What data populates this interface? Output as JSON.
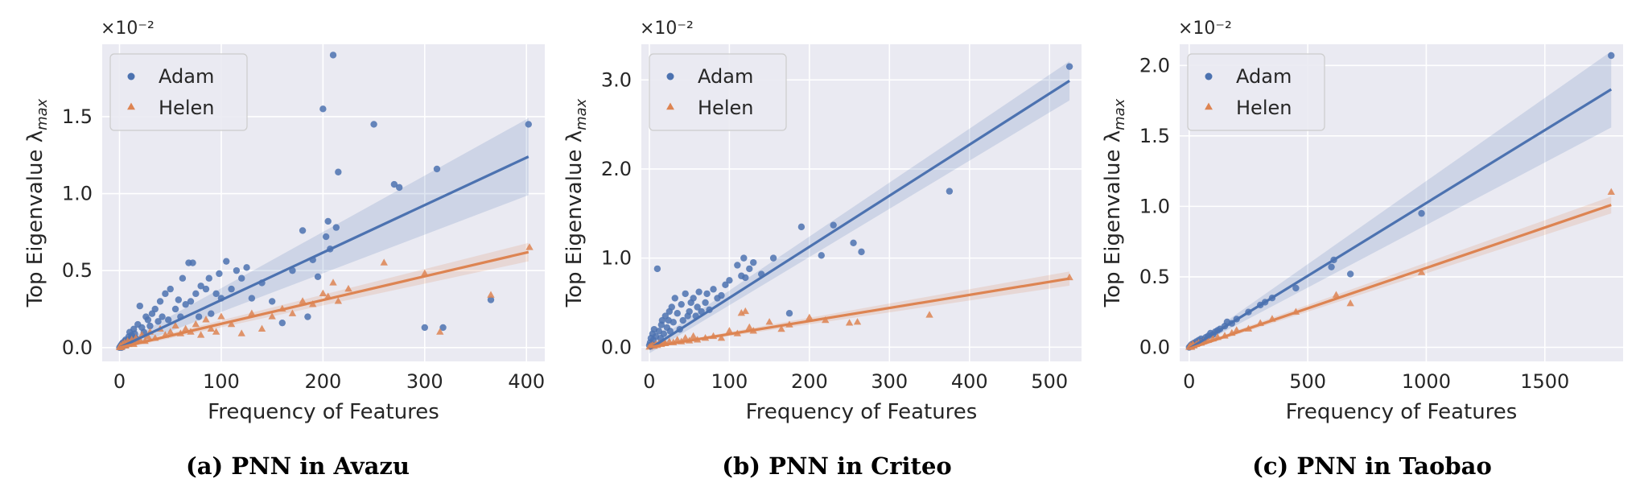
{
  "axis_exponent_label": "×10⁻²",
  "legend_items": {
    "adam": "Adam",
    "helen": "Helen"
  },
  "colors": {
    "adam": "#4c72b0",
    "helen": "#dd8452",
    "grid": "#ffffff",
    "plot_bg": "#eaeaf2",
    "text": "#262626"
  },
  "chart_data": [
    {
      "type": "scatter",
      "caption": "(a) PNN in Avazu",
      "xlabel": "Frequency of Features",
      "ylabel": "Top Eigenvalue λ",
      "ylabel_subscript": "max",
      "xlim": [
        -17,
        418
      ],
      "ylim": [
        -0.09,
        1.97
      ],
      "xticks": [
        0,
        100,
        200,
        300,
        400
      ],
      "xtick_labels": [
        "0",
        "100",
        "200",
        "300",
        "400"
      ],
      "yticks": [
        0,
        0.5,
        1.0,
        1.5
      ],
      "ytick_labels": [
        "0.0",
        "0.5",
        "1.0",
        "1.5"
      ],
      "legend": "top-left",
      "grid": true,
      "series": [
        {
          "name": "Adam",
          "marker": "circle",
          "x": [
            0,
            1,
            2,
            2,
            3,
            4,
            5,
            5,
            6,
            7,
            8,
            9,
            10,
            10,
            11,
            12,
            13,
            14,
            15,
            16,
            18,
            20,
            22,
            24,
            26,
            28,
            30,
            32,
            35,
            38,
            40,
            42,
            45,
            48,
            50,
            55,
            58,
            60,
            62,
            65,
            68,
            70,
            72,
            75,
            78,
            80,
            85,
            88,
            90,
            95,
            98,
            100,
            105,
            110,
            115,
            120,
            125,
            130,
            140,
            150,
            160,
            170,
            180,
            185,
            190,
            195,
            200,
            203,
            205,
            207,
            210,
            213,
            215,
            250,
            270,
            275,
            300,
            312,
            318,
            365,
            402
          ],
          "y": [
            0.0,
            0.01,
            0.02,
            0.0,
            0.03,
            0.01,
            0.04,
            0.02,
            0.05,
            0.03,
            0.02,
            0.07,
            0.05,
            0.1,
            0.06,
            0.08,
            0.04,
            0.12,
            0.09,
            0.06,
            0.15,
            0.27,
            0.13,
            0.1,
            0.2,
            0.18,
            0.14,
            0.22,
            0.25,
            0.17,
            0.3,
            0.2,
            0.35,
            0.18,
            0.38,
            0.25,
            0.31,
            0.2,
            0.45,
            0.28,
            0.55,
            0.3,
            0.55,
            0.35,
            0.2,
            0.4,
            0.38,
            0.45,
            0.22,
            0.35,
            0.48,
            0.32,
            0.56,
            0.38,
            0.5,
            0.45,
            0.52,
            0.32,
            0.42,
            0.3,
            0.16,
            0.5,
            0.76,
            0.2,
            0.57,
            0.46,
            1.55,
            0.72,
            0.82,
            0.64,
            1.9,
            0.78,
            1.14,
            1.45,
            1.06,
            1.04,
            0.13,
            1.16,
            0.13,
            0.31,
            1.45
          ]
        },
        {
          "name": "Helen",
          "marker": "triangle",
          "x": [
            0,
            1,
            2,
            3,
            4,
            5,
            6,
            7,
            8,
            9,
            10,
            12,
            14,
            16,
            18,
            20,
            22,
            25,
            28,
            30,
            35,
            40,
            45,
            50,
            55,
            60,
            65,
            70,
            75,
            80,
            85,
            90,
            95,
            100,
            110,
            120,
            130,
            140,
            150,
            160,
            170,
            180,
            190,
            200,
            205,
            210,
            215,
            225,
            260,
            300,
            315,
            365,
            403
          ],
          "y": [
            0.0,
            0.01,
            0.0,
            0.02,
            0.01,
            0.03,
            0.01,
            0.02,
            0.04,
            0.02,
            0.03,
            0.05,
            0.02,
            0.06,
            0.04,
            0.05,
            0.08,
            0.04,
            0.07,
            0.1,
            0.06,
            0.12,
            0.08,
            0.1,
            0.14,
            0.09,
            0.12,
            0.1,
            0.15,
            0.08,
            0.18,
            0.12,
            0.1,
            0.2,
            0.15,
            0.09,
            0.22,
            0.12,
            0.2,
            0.25,
            0.22,
            0.3,
            0.28,
            0.35,
            0.33,
            0.42,
            0.3,
            0.38,
            0.55,
            0.48,
            0.1,
            0.34,
            0.65
          ]
        }
      ],
      "fits": [
        {
          "name": "Adam",
          "x": [
            0,
            402
          ],
          "y": [
            0.0,
            1.24
          ],
          "ci_halfwidth": [
            0.02,
            0.25
          ]
        },
        {
          "name": "Helen",
          "x": [
            0,
            402
          ],
          "y": [
            0.0,
            0.62
          ],
          "ci_halfwidth": [
            0.01,
            0.06
          ]
        }
      ]
    },
    {
      "type": "scatter",
      "caption": "(b) PNN in Criteo",
      "xlabel": "Frequency of Features",
      "ylabel": "Top Eigenvalue λ",
      "ylabel_subscript": "max",
      "xlim": [
        -10,
        540
      ],
      "ylim": [
        -0.16,
        3.4
      ],
      "xticks": [
        0,
        100,
        200,
        300,
        400,
        500
      ],
      "xtick_labels": [
        "0",
        "100",
        "200",
        "300",
        "400",
        "500"
      ],
      "yticks": [
        0,
        1.0,
        2.0,
        3.0
      ],
      "ytick_labels": [
        "0.0",
        "1.0",
        "2.0",
        "3.0"
      ],
      "legend": "top-left",
      "grid": true,
      "series": [
        {
          "name": "Adam",
          "marker": "circle",
          "x": [
            0,
            1,
            2,
            3,
            4,
            5,
            6,
            8,
            10,
            12,
            14,
            15,
            16,
            18,
            20,
            22,
            24,
            25,
            26,
            28,
            30,
            32,
            35,
            38,
            40,
            42,
            45,
            48,
            50,
            52,
            55,
            58,
            60,
            62,
            65,
            70,
            72,
            75,
            80,
            85,
            90,
            95,
            100,
            110,
            115,
            118,
            120,
            125,
            130,
            140,
            155,
            175,
            190,
            215,
            230,
            255,
            265,
            375,
            525
          ],
          "y": [
            0.02,
            0.05,
            0.1,
            0.03,
            0.15,
            0.08,
            0.2,
            0.12,
            0.88,
            0.18,
            0.1,
            0.25,
            0.3,
            0.15,
            0.35,
            0.22,
            0.3,
            0.4,
            0.18,
            0.45,
            0.28,
            0.55,
            0.38,
            0.2,
            0.48,
            0.3,
            0.6,
            0.35,
            0.4,
            0.5,
            0.55,
            0.35,
            0.45,
            0.62,
            0.4,
            0.5,
            0.6,
            0.42,
            0.65,
            0.55,
            0.58,
            0.7,
            0.75,
            0.92,
            0.8,
            1.0,
            0.78,
            0.88,
            0.95,
            0.82,
            1.0,
            0.38,
            1.35,
            1.03,
            1.37,
            1.17,
            1.07,
            1.75,
            3.15
          ]
        },
        {
          "name": "Helen",
          "marker": "triangle",
          "x": [
            0,
            2,
            4,
            6,
            8,
            10,
            12,
            15,
            18,
            20,
            25,
            30,
            35,
            40,
            45,
            50,
            55,
            60,
            70,
            80,
            90,
            100,
            110,
            115,
            120,
            125,
            130,
            150,
            165,
            175,
            200,
            220,
            250,
            260,
            350,
            525
          ],
          "y": [
            0.0,
            0.01,
            0.02,
            0.01,
            0.03,
            0.02,
            0.04,
            0.03,
            0.05,
            0.04,
            0.06,
            0.05,
            0.08,
            0.06,
            0.1,
            0.07,
            0.12,
            0.08,
            0.1,
            0.12,
            0.1,
            0.18,
            0.15,
            0.38,
            0.4,
            0.22,
            0.18,
            0.28,
            0.2,
            0.25,
            0.33,
            0.3,
            0.27,
            0.28,
            0.36,
            0.78
          ]
        }
      ],
      "fits": [
        {
          "name": "Adam",
          "x": [
            0,
            525
          ],
          "y": [
            -0.02,
            2.99
          ],
          "ci_halfwidth": [
            0.05,
            0.22
          ]
        },
        {
          "name": "Helen",
          "x": [
            0,
            525
          ],
          "y": [
            0.0,
            0.77
          ],
          "ci_halfwidth": [
            0.01,
            0.08
          ]
        }
      ]
    },
    {
      "type": "scatter",
      "caption": "(c) PNN in Taobao",
      "xlabel": "Frequency of Features",
      "ylabel": "Top Eigenvalue λ",
      "ylabel_subscript": "max",
      "xlim": [
        -40,
        1830
      ],
      "ylim": [
        -0.1,
        2.15
      ],
      "xticks": [
        0,
        500,
        1000,
        1500
      ],
      "xtick_labels": [
        "0",
        "500",
        "1000",
        "1500"
      ],
      "yticks": [
        0,
        0.5,
        1.0,
        1.5,
        2.0
      ],
      "ytick_labels": [
        "0.0",
        "0.5",
        "1.0",
        "1.5",
        "2.0"
      ],
      "legend": "top-left",
      "grid": true,
      "series": [
        {
          "name": "Adam",
          "marker": "circle",
          "x": [
            0,
            5,
            10,
            15,
            20,
            25,
            30,
            40,
            50,
            60,
            70,
            80,
            90,
            100,
            110,
            120,
            130,
            150,
            160,
            180,
            200,
            250,
            300,
            320,
            350,
            450,
            600,
            610,
            680,
            980,
            1780
          ],
          "y": [
            0.0,
            0.01,
            0.02,
            0.01,
            0.03,
            0.02,
            0.04,
            0.05,
            0.06,
            0.05,
            0.07,
            0.08,
            0.1,
            0.09,
            0.11,
            0.12,
            0.13,
            0.15,
            0.18,
            0.17,
            0.2,
            0.25,
            0.3,
            0.32,
            0.35,
            0.42,
            0.57,
            0.62,
            0.52,
            0.95,
            2.07
          ]
        },
        {
          "name": "Helen",
          "marker": "triangle",
          "x": [
            0,
            5,
            10,
            15,
            20,
            30,
            40,
            50,
            60,
            80,
            100,
            120,
            150,
            180,
            200,
            250,
            300,
            350,
            450,
            620,
            680,
            980,
            1780
          ],
          "y": [
            0.0,
            0.01,
            0.0,
            0.02,
            0.01,
            0.02,
            0.03,
            0.03,
            0.04,
            0.05,
            0.06,
            0.07,
            0.08,
            0.1,
            0.12,
            0.13,
            0.17,
            0.2,
            0.25,
            0.37,
            0.31,
            0.53,
            1.1
          ]
        }
      ],
      "fits": [
        {
          "name": "Adam",
          "x": [
            0,
            1780
          ],
          "y": [
            -0.01,
            1.83
          ],
          "ci_halfwidth": [
            0.01,
            0.27
          ]
        },
        {
          "name": "Helen",
          "x": [
            0,
            1780
          ],
          "y": [
            -0.01,
            1.01
          ],
          "ci_halfwidth": [
            0.01,
            0.06
          ]
        }
      ]
    }
  ]
}
